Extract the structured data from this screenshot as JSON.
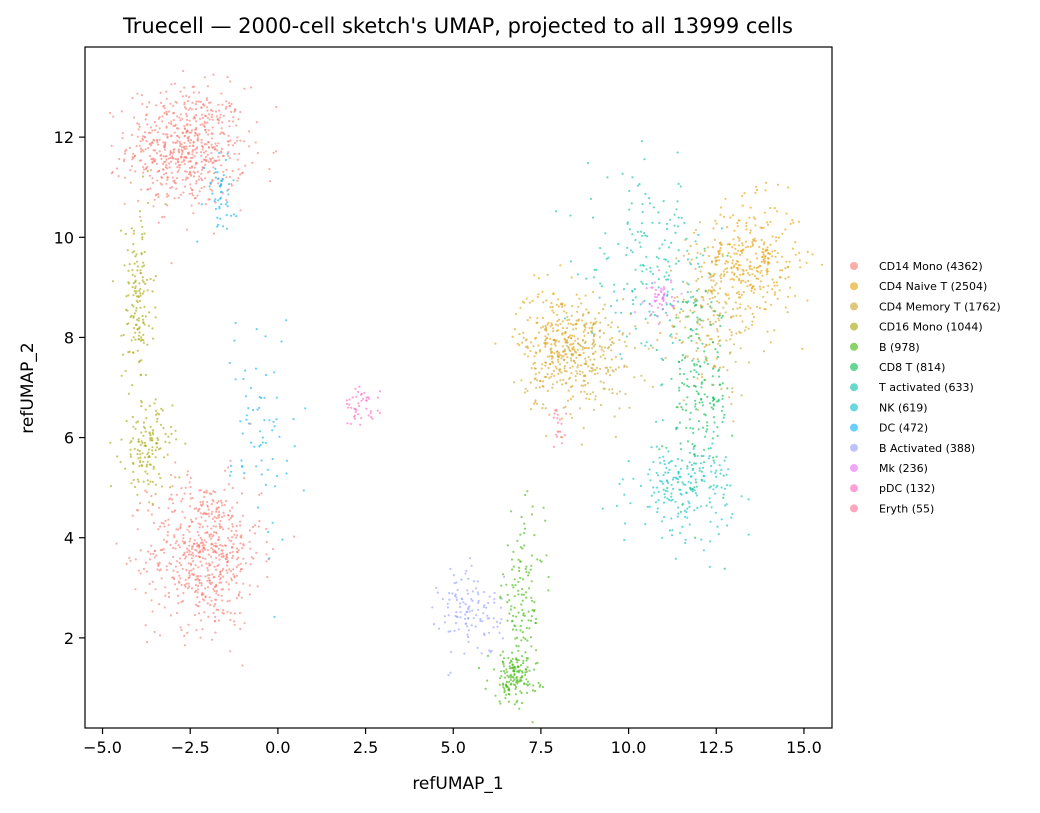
{
  "chart_data": {
    "type": "scatter",
    "title": "Truecell — 2000-cell sketch's UMAP, projected to all 13999 cells",
    "xlabel": "refUMAP_1",
    "ylabel": "refUMAP_2",
    "xlim": [
      -5.5,
      15.8
    ],
    "ylim": [
      0.2,
      13.8
    ],
    "xticks": [
      -5.0,
      -2.5,
      0.0,
      2.5,
      5.0,
      7.5,
      10.0,
      12.5,
      15.0
    ],
    "xtick_labels": [
      "−5.0",
      "−2.5",
      "0.0",
      "2.5",
      "5.0",
      "7.5",
      "10.0",
      "12.5",
      "15.0"
    ],
    "yticks": [
      2,
      4,
      6,
      8,
      10,
      12
    ],
    "ytick_labels": [
      "2",
      "4",
      "6",
      "8",
      "10",
      "12"
    ],
    "grid": false,
    "legend_position": "right",
    "series": [
      {
        "name": "CD14 Mono (4362)",
        "color": "#f8766d",
        "clusters": [
          {
            "cx": -2.6,
            "cy": 11.8,
            "sx": 0.85,
            "sy": 0.6,
            "n": 640
          },
          {
            "cx": -2.1,
            "cy": 3.7,
            "sx": 0.8,
            "sy": 0.75,
            "n": 620
          }
        ]
      },
      {
        "name": "CD4 Naive T (2504)",
        "color": "#e69f00",
        "clusters": [
          {
            "cx": 13.5,
            "cy": 9.5,
            "sx": 0.7,
            "sy": 0.6,
            "n": 330
          },
          {
            "cx": 8.0,
            "cy": 8.0,
            "sx": 0.6,
            "sy": 0.5,
            "n": 200
          }
        ]
      },
      {
        "name": "CD4 Memory T (1762)",
        "color": "#c9a227",
        "clusters": [
          {
            "cx": 8.6,
            "cy": 7.6,
            "sx": 0.8,
            "sy": 0.6,
            "n": 300
          },
          {
            "cx": 12.3,
            "cy": 8.4,
            "sx": 0.6,
            "sy": 0.8,
            "n": 180
          }
        ]
      },
      {
        "name": "CD16 Mono (1044)",
        "color": "#a3a500",
        "clusters": [
          {
            "cx": -4.0,
            "cy": 8.7,
            "sx": 0.22,
            "sy": 0.9,
            "n": 150
          },
          {
            "cx": -3.7,
            "cy": 5.8,
            "sx": 0.35,
            "sy": 0.45,
            "n": 140
          }
        ]
      },
      {
        "name": "B (978)",
        "color": "#39b600",
        "clusters": [
          {
            "cx": 6.7,
            "cy": 1.2,
            "sx": 0.35,
            "sy": 0.25,
            "n": 140
          },
          {
            "cx": 7.0,
            "cy": 2.8,
            "sx": 0.3,
            "sy": 0.8,
            "n": 130
          }
        ]
      },
      {
        "name": "CD8 T (814)",
        "color": "#00bb4e",
        "clusters": [
          {
            "cx": 12.0,
            "cy": 6.8,
            "sx": 0.45,
            "sy": 1.0,
            "n": 200
          }
        ]
      },
      {
        "name": "T activated (633)",
        "color": "#00c1a3",
        "clusters": [
          {
            "cx": 10.6,
            "cy": 9.4,
            "sx": 0.9,
            "sy": 0.9,
            "n": 180
          }
        ]
      },
      {
        "name": "NK (619)",
        "color": "#00bfc4",
        "clusters": [
          {
            "cx": 11.6,
            "cy": 5.0,
            "sx": 0.7,
            "sy": 0.45,
            "n": 200
          }
        ]
      },
      {
        "name": "DC (472)",
        "color": "#00b0f6",
        "clusters": [
          {
            "cx": -1.7,
            "cy": 10.9,
            "sx": 0.25,
            "sy": 0.4,
            "n": 50
          },
          {
            "cx": -0.4,
            "cy": 6.3,
            "sx": 0.45,
            "sy": 1.2,
            "n": 70
          }
        ]
      },
      {
        "name": "B Activated (388)",
        "color": "#8f9bff",
        "clusters": [
          {
            "cx": 5.5,
            "cy": 2.5,
            "sx": 0.45,
            "sy": 0.45,
            "n": 120
          }
        ]
      },
      {
        "name": "Mk (236)",
        "color": "#e76bf3",
        "clusters": [
          {
            "cx": 10.9,
            "cy": 8.8,
            "sx": 0.2,
            "sy": 0.2,
            "n": 50
          }
        ]
      },
      {
        "name": "pDC (132)",
        "color": "#ff62bc",
        "clusters": [
          {
            "cx": 2.4,
            "cy": 6.6,
            "sx": 0.25,
            "sy": 0.2,
            "n": 45
          }
        ]
      },
      {
        "name": "Eryth (55)",
        "color": "#ff6c91",
        "clusters": [
          {
            "cx": 8.0,
            "cy": 6.2,
            "sx": 0.12,
            "sy": 0.2,
            "n": 18
          }
        ]
      }
    ]
  }
}
